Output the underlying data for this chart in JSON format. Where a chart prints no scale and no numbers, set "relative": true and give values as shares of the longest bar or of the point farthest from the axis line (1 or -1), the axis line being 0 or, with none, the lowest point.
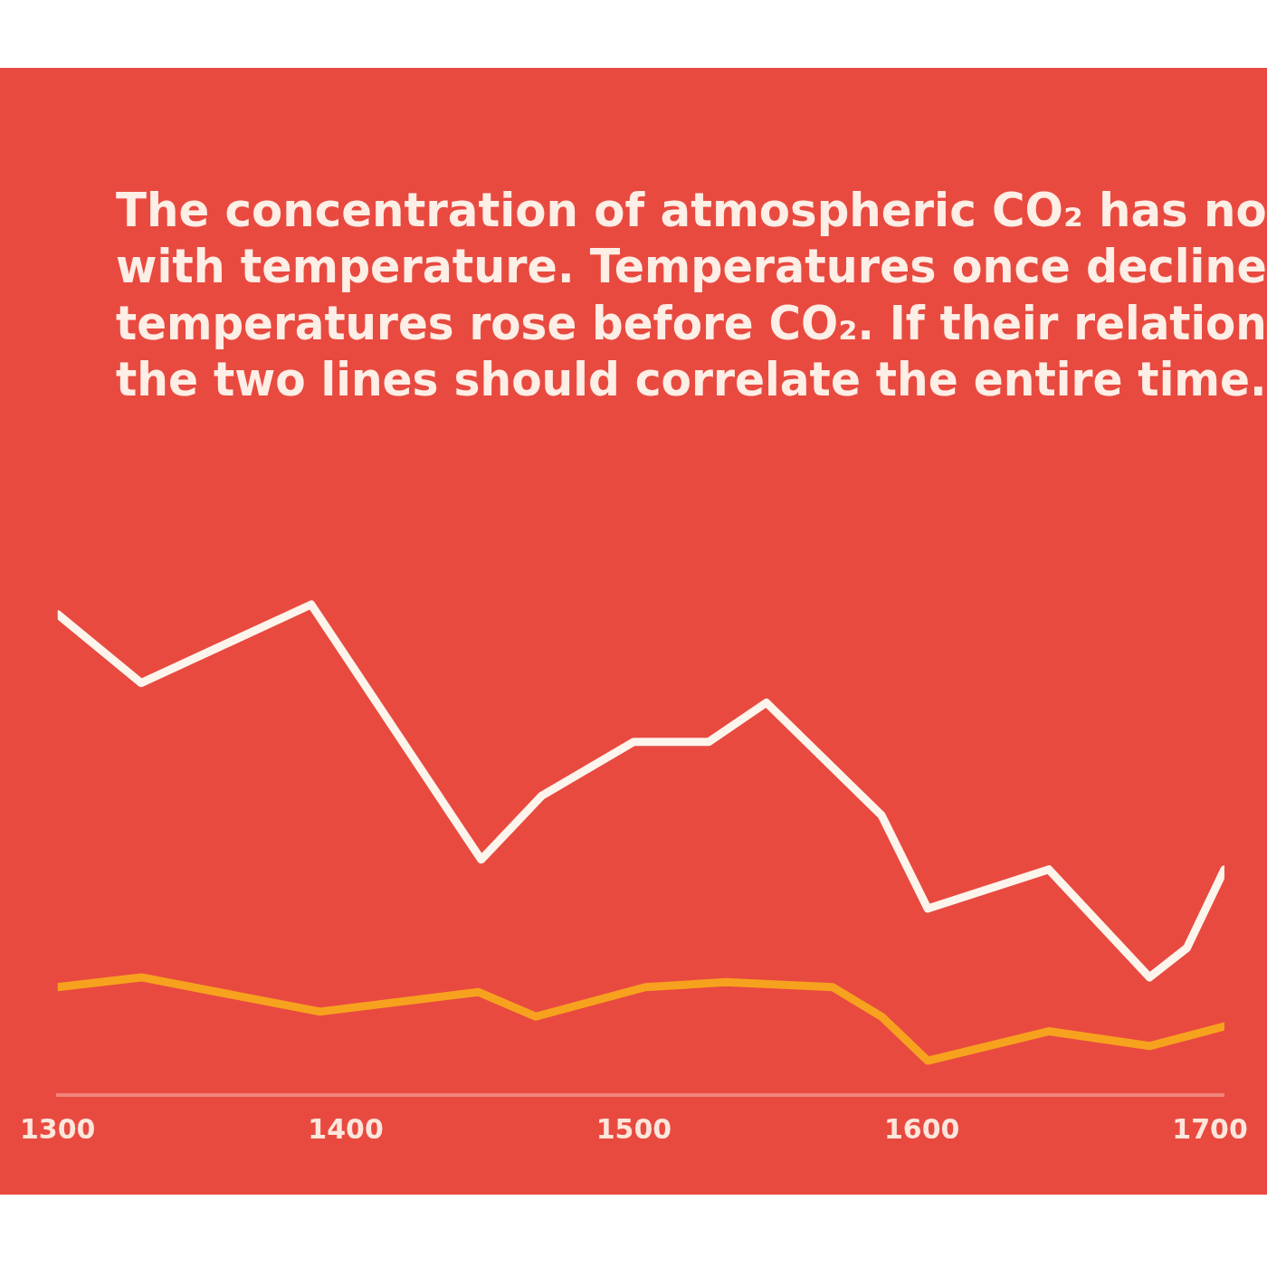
{
  "chart_data": {
    "type": "line",
    "title": "The concentration of atmospheric CO₂ has no\nwith temperature. Temperatures once decline\ntemperatures rose before CO₂. If their relation\nthe two lines should correlate the entire time.",
    "relative": true,
    "xlim": [
      1300,
      1705
    ],
    "xticks": [
      1300,
      1400,
      1500,
      1600,
      1700
    ],
    "grid": false,
    "legend": false,
    "marker": "none",
    "line_style": "solid",
    "series": [
      {
        "color": "#fdf4ec",
        "x": [
          1300,
          1329,
          1388,
          1447,
          1468,
          1500,
          1526,
          1546,
          1586,
          1602,
          1644,
          1679,
          1692,
          1705
        ],
        "values": [
          0.98,
          0.84,
          1,
          0.48,
          0.61,
          0.72,
          0.72,
          0.8,
          0.57,
          0.38,
          0.46,
          0.24,
          0.3,
          0.46
        ]
      },
      {
        "color": "#f7a21e",
        "x": [
          1300,
          1329,
          1391,
          1446,
          1466,
          1504,
          1532,
          1569,
          1586,
          1602,
          1644,
          1679,
          1705
        ],
        "values": [
          0.22,
          0.24,
          0.17,
          0.21,
          0.16,
          0.22,
          0.23,
          0.22,
          0.16,
          0.07,
          0.13,
          0.1,
          0.14
        ]
      }
    ]
  }
}
